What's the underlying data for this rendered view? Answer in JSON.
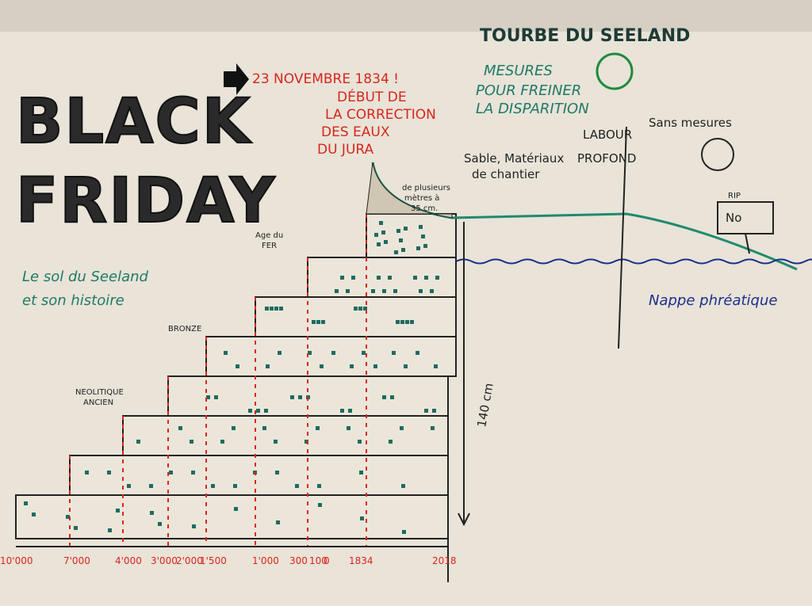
{
  "title": {
    "line1": "BLACK",
    "line2": "FRIDAY"
  },
  "date": "23 NOVEMBRE 1834 !",
  "event": [
    "DÉBUT DE",
    "LA CORRECTION",
    "DES EAUX",
    "DU JURA"
  ],
  "header": "TOURBE DU SEELAND",
  "measures": [
    "MESURES",
    "POUR FREINER",
    "LA DISPARITION"
  ],
  "sand": [
    "Sable, Matériaux",
    "de chantier"
  ],
  "plowing": [
    "LABOUR",
    "PROFOND"
  ],
  "without": "Sans mesures",
  "sign": [
    "RIP",
    "No"
  ],
  "peat_note": [
    "de plusieurs",
    "mètres à",
    "35 cm."
  ],
  "subtitle": [
    "Le sol du Seeland",
    "et son histoire"
  ],
  "groundwater": "Nappe phréatique",
  "depth": "140 cm",
  "ages": {
    "iron": [
      "Age du",
      "FER"
    ],
    "bronze": "BRONZE",
    "neolithic": [
      "NEOLITIQUE",
      "ANCIEN"
    ]
  },
  "timeline": [
    "10'000",
    "7'000",
    "4'000",
    "3'000",
    "2'000",
    "1'500",
    "1'000",
    "300",
    "100",
    "0",
    "1834",
    "2018"
  ]
}
